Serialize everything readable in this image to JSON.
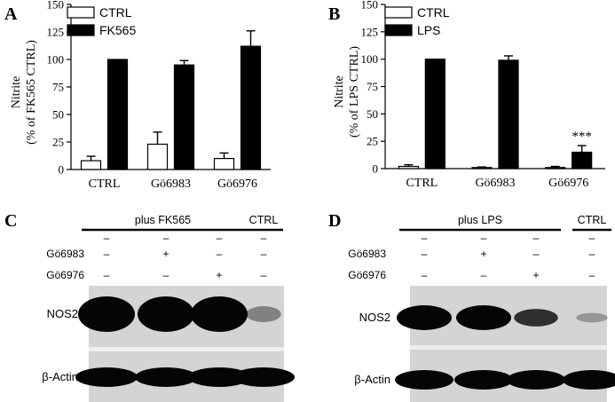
{
  "chart_data": [
    {
      "panel": "A",
      "type": "bar",
      "categories": [
        "CTRL",
        "Gö6983",
        "Gö6976"
      ],
      "ylabel": "Nitrite\n(% of FK565 CTRL)",
      "ylim": [
        0,
        150
      ],
      "yticks": [
        "0",
        "25",
        "50",
        "75",
        "100",
        "125",
        "150"
      ],
      "series": [
        {
          "name": "CTRL",
          "fill": "#ffffff",
          "values": [
            8,
            23,
            10
          ],
          "errors": [
            4,
            11,
            5
          ]
        },
        {
          "name": "FK565",
          "fill": "#000000",
          "values": [
            100,
            95,
            112
          ],
          "errors": [
            0,
            4,
            14
          ]
        }
      ],
      "legend_position": "top-left",
      "grid": false
    },
    {
      "panel": "B",
      "type": "bar",
      "categories": [
        "CTRL",
        "Gö6983",
        "Gö6976"
      ],
      "ylabel": "Nitrite\n(% of LPS CTRL)",
      "ylim": [
        0,
        150
      ],
      "yticks": [
        "0",
        "25",
        "50",
        "75",
        "100",
        "125",
        "150"
      ],
      "series": [
        {
          "name": "CTRL",
          "fill": "#ffffff",
          "values": [
            2,
            1,
            1
          ],
          "errors": [
            1.5,
            0.5,
            1
          ]
        },
        {
          "name": "LPS",
          "fill": "#000000",
          "values": [
            100,
            99,
            15
          ],
          "errors": [
            0,
            4,
            6
          ]
        }
      ],
      "annotations": [
        {
          "category": "Gö6976",
          "series": "LPS",
          "text": "***"
        }
      ],
      "legend_position": "top-left",
      "grid": false
    }
  ],
  "blots": [
    {
      "panel": "C",
      "group_labels": {
        "treated": "plus FK565",
        "control": "CTRL"
      },
      "rows": [
        {
          "label": "Gö6983",
          "marks": [
            "–",
            "+",
            "–",
            "–"
          ]
        },
        {
          "label": "Gö6976",
          "marks": [
            "–",
            "–",
            "+",
            "–"
          ]
        }
      ],
      "bands": [
        {
          "label": "NOS2",
          "intensity": [
            1.0,
            1.0,
            1.0,
            0.15
          ]
        },
        {
          "label": "β-Actin",
          "intensity": [
            1.0,
            1.0,
            1.0,
            1.0
          ]
        }
      ]
    },
    {
      "panel": "D",
      "group_labels": {
        "treated": "plus LPS",
        "control": "CTRL"
      },
      "rows": [
        {
          "label": "Gö6983",
          "marks": [
            "–",
            "+",
            "–",
            "–"
          ]
        },
        {
          "label": "Gö6976",
          "marks": [
            "–",
            "–",
            "+",
            "–"
          ]
        }
      ],
      "bands": [
        {
          "label": "NOS2",
          "intensity": [
            1.0,
            1.0,
            0.55,
            0.05
          ]
        },
        {
          "label": "β-Actin",
          "intensity": [
            1.0,
            1.0,
            1.0,
            1.0
          ]
        }
      ]
    }
  ],
  "colors": {
    "bar_dark": "#000000",
    "bar_light": "#ffffff",
    "blot_bg": "#d4d4d4",
    "band": "#050505"
  }
}
